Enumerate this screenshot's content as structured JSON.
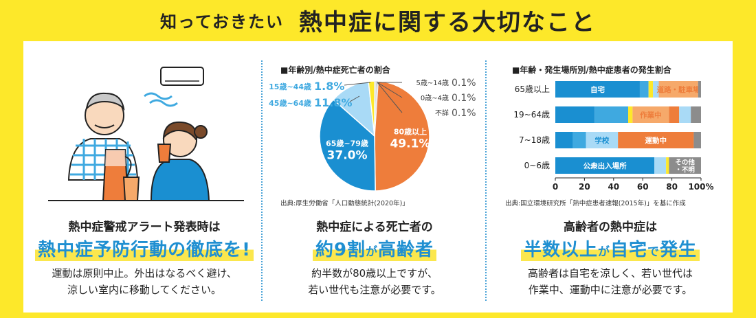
{
  "header": {
    "title_small": "知っておきたい",
    "title_large": "熱中症に関する大切なこと"
  },
  "left": {
    "lead": "熱中症警戒アラート発表時は",
    "headline": "熱中症予防行動の徹底を!",
    "body_1": "運動は原則中止。外出はなるべく避け、",
    "body_2": "涼しい室内に移動してください。"
  },
  "middle": {
    "lead": "熱中症による死亡者の",
    "headline_a": "約9割",
    "headline_b": "が",
    "headline_c": "高齢者",
    "body_1": "約半数が80歳以上ですが、",
    "body_2": "若い世代も注意が必要です。"
  },
  "right": {
    "lead": "高齢者の熱中症は",
    "headline_a": "半数以上",
    "headline_b": "が",
    "headline_c": "自宅",
    "headline_d": "で",
    "headline_e": "発生",
    "body_1": "高齢者は自宅を涼しく、若い世代は",
    "body_2": "作業中、運動中に注意が必要です。"
  },
  "colors": {
    "orange": "#ee7d3b",
    "blue": "#1a8fd1",
    "mid_blue": "#3fa9e0",
    "light_blue": "#a9daf6",
    "yellow": "#fde82a",
    "gray": "#8c8c8c",
    "light_orange": "#f6a96a"
  },
  "chart_data": [
    {
      "type": "pie",
      "title": "■年齢別/熱中症死亡者の割合",
      "source": "出典:厚生労働省「人口動態統計(2020年)」",
      "slices": [
        {
          "label": "80歳以上",
          "value": 49.1,
          "value_text": "49.1%",
          "color": "#ee7d3b"
        },
        {
          "label": "65歳~79歳",
          "value": 37.0,
          "value_text": "37.0%",
          "color": "#1a8fd1"
        },
        {
          "label": "45歳~64歳",
          "value": 11.8,
          "value_text": "11.8%",
          "color": "#a9daf6"
        },
        {
          "label": "15歳~44歳",
          "value": 1.8,
          "value_text": "1.8%",
          "color": "#fde82a"
        },
        {
          "label": "5歳~14歳",
          "value": 0.1,
          "value_text": "0.1%",
          "color": "#cccccc"
        },
        {
          "label": "0歳~4歳",
          "value": 0.1,
          "value_text": "0.1%",
          "color": "#cccccc"
        },
        {
          "label": "不詳",
          "value": 0.1,
          "value_text": "0.1%",
          "color": "#cccccc"
        }
      ]
    },
    {
      "type": "bar",
      "title": "■年齢・発生場所別/熱中症患者の発生割合",
      "source": "出典:国立環境研究所「熱中症患者速報(2015年)」を基に作成",
      "categories": [
        "65歳以上",
        "19~64歳",
        "7~18歳",
        "0~6歳"
      ],
      "xlim": [
        0,
        100
      ],
      "xticks": [
        "0",
        "20",
        "40",
        "60",
        "80",
        "100%"
      ],
      "stacked": true,
      "rows": [
        [
          {
            "value": 58,
            "color": "#1a8fd1",
            "label": "自宅"
          },
          {
            "value": 6,
            "color": "#3fa9e0",
            "label": ""
          },
          {
            "value": 3,
            "color": "#fde82a",
            "label": ""
          },
          {
            "value": 4,
            "color": "#a9daf6",
            "label": ""
          },
          {
            "value": 27,
            "color": "#f6a96a",
            "label": "道路・駐車場"
          },
          {
            "value": 2,
            "color": "#8c8c8c",
            "label": ""
          }
        ],
        [
          {
            "value": 27,
            "color": "#1a8fd1",
            "label": ""
          },
          {
            "value": 23,
            "color": "#3fa9e0",
            "label": ""
          },
          {
            "value": 3,
            "color": "#fde82a",
            "label": ""
          },
          {
            "value": 25,
            "color": "#f6a96a",
            "label": "作業中"
          },
          {
            "value": 7,
            "color": "#ee7d3b",
            "label": ""
          },
          {
            "value": 8,
            "color": "#a9daf6",
            "label": ""
          },
          {
            "value": 7,
            "color": "#8c8c8c",
            "label": ""
          }
        ],
        [
          {
            "value": 12,
            "color": "#1a8fd1",
            "label": ""
          },
          {
            "value": 9,
            "color": "#3fa9e0",
            "label": ""
          },
          {
            "value": 22,
            "color": "#a9daf6",
            "label": "学校"
          },
          {
            "value": 52,
            "color": "#ee7d3b",
            "label": "運動中"
          },
          {
            "value": 5,
            "color": "#8c8c8c",
            "label": ""
          }
        ],
        [
          {
            "value": 68,
            "color": "#1a8fd1",
            "label": "公衆出入場所"
          },
          {
            "value": 8,
            "color": "#a9daf6",
            "label": ""
          },
          {
            "value": 2,
            "color": "#fde82a",
            "label": ""
          },
          {
            "value": 22,
            "color": "#8c8c8c",
            "label": "その他・不明"
          }
        ]
      ]
    }
  ]
}
